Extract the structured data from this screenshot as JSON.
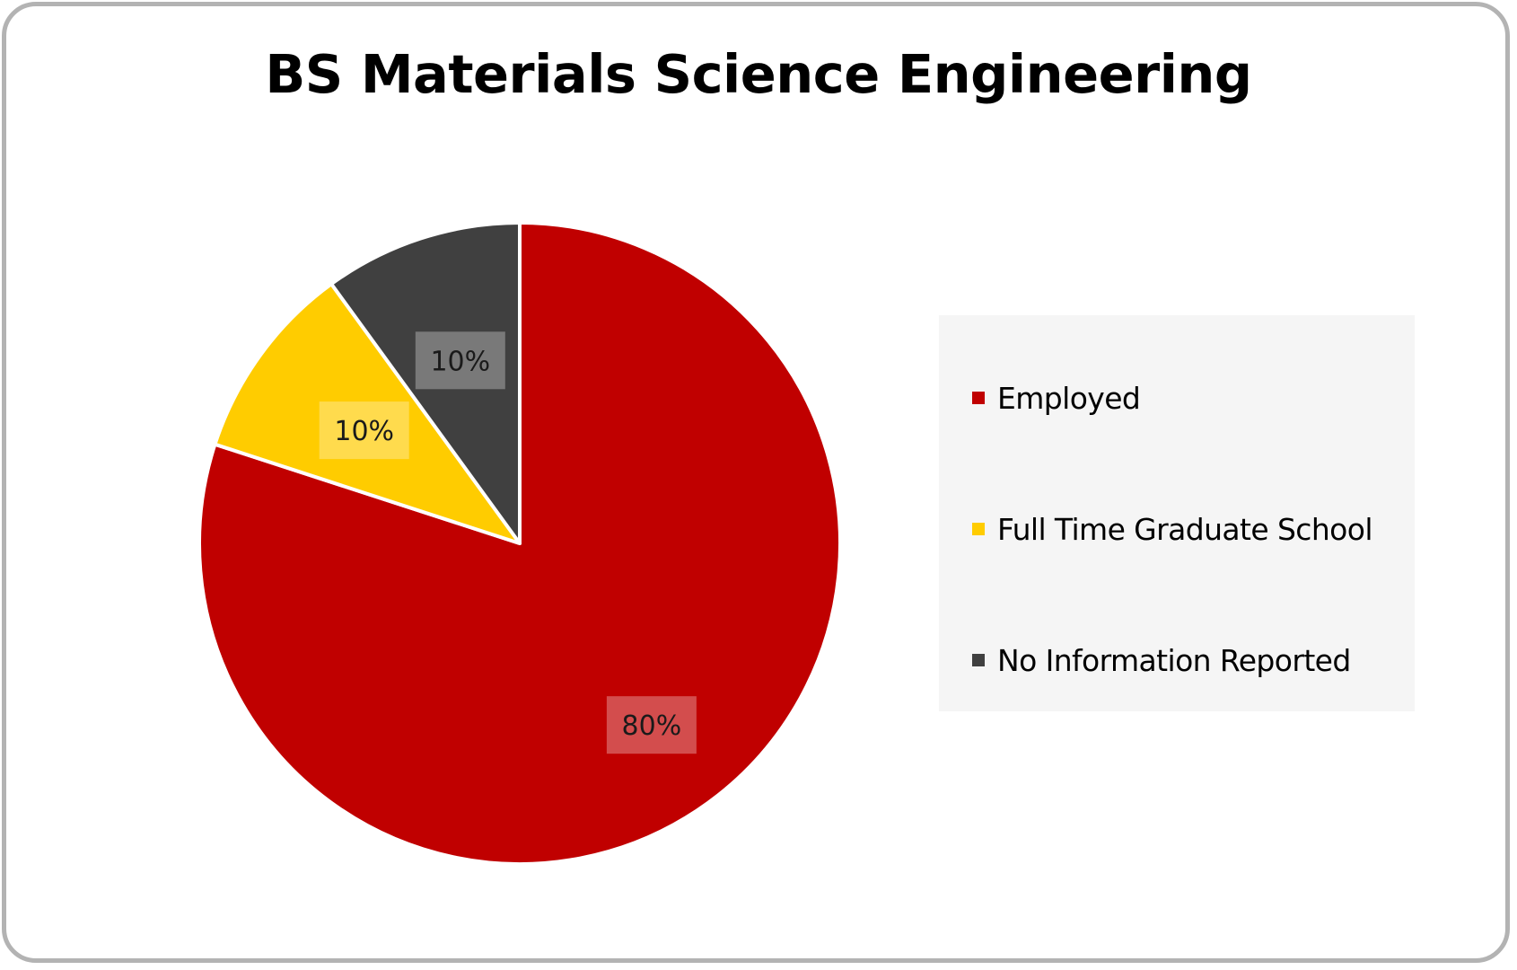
{
  "chart_data": {
    "type": "pie",
    "title": "BS Materials Science Engineering",
    "categories": [
      "Employed",
      "Full Time Graduate School",
      "No Information Reported"
    ],
    "values": [
      80,
      10,
      10
    ],
    "data_labels": [
      "80%",
      "10%",
      "10%"
    ],
    "colors": [
      "#c00000",
      "#ffcc00",
      "#404040"
    ],
    "start_angle_deg": 0,
    "direction": "clockwise",
    "legend_position": "right",
    "legend": [
      {
        "label": "Employed",
        "color": "#c00000"
      },
      {
        "label": "Full Time Graduate School",
        "color": "#ffcc00"
      },
      {
        "label": "No Information Reported",
        "color": "#404040"
      }
    ]
  }
}
